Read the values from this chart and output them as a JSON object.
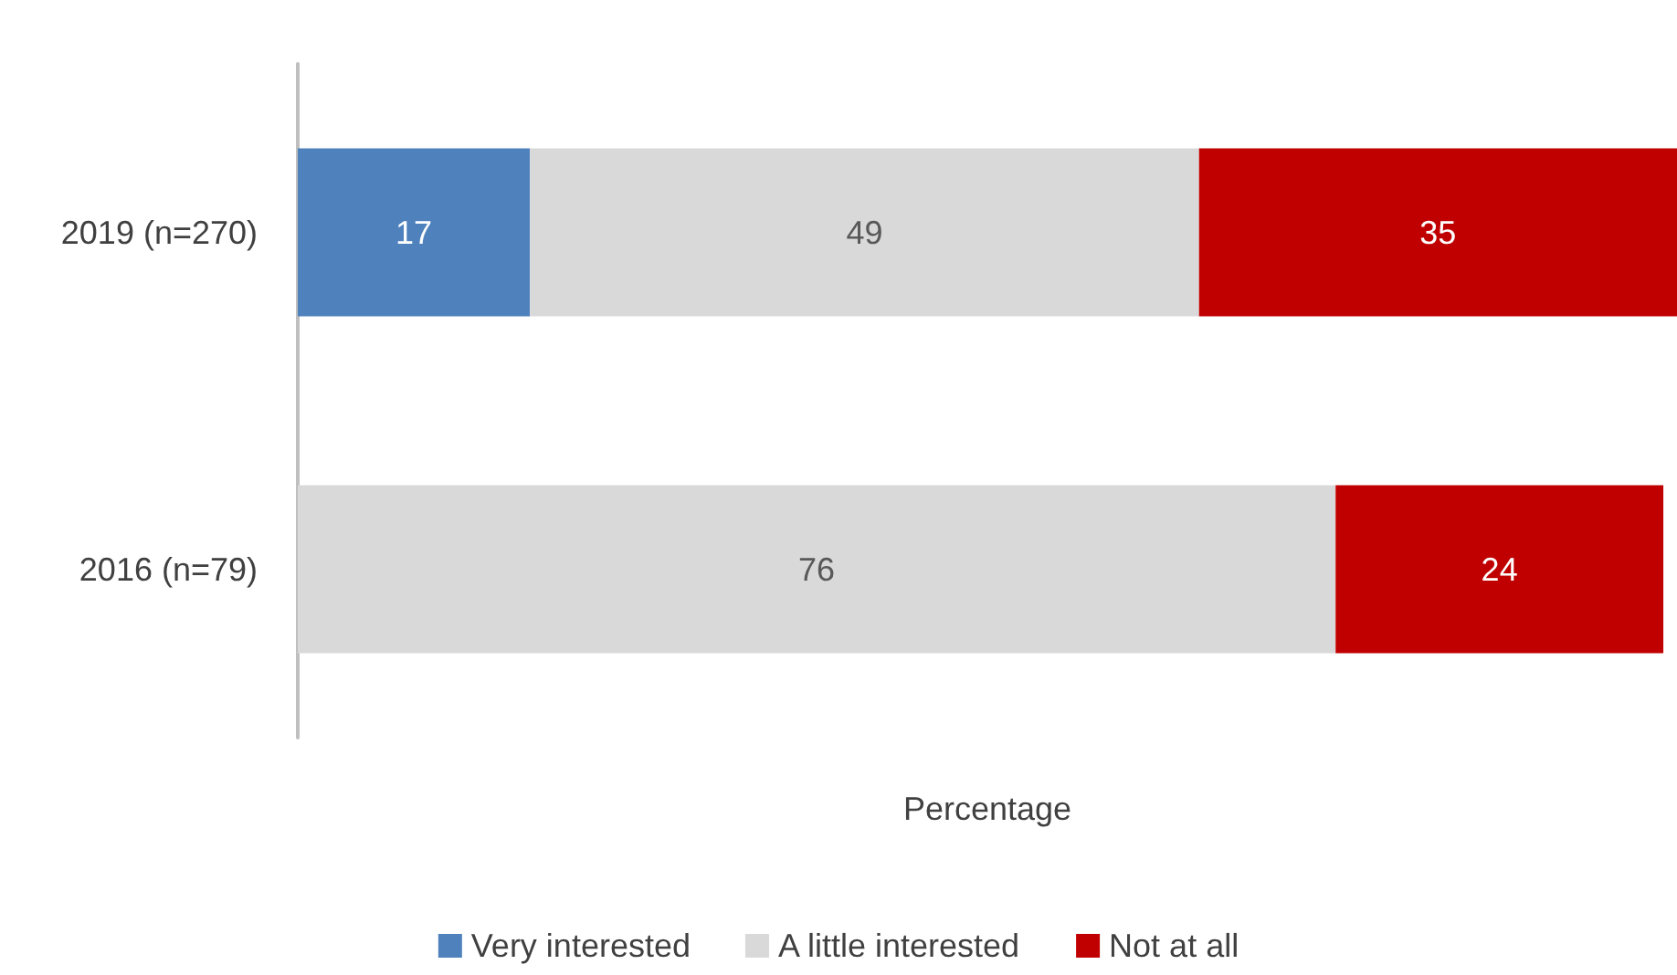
{
  "chart_data": {
    "type": "bar",
    "orientation": "horizontal",
    "stacked": true,
    "xlabel": "Percentage",
    "categories": [
      "2019 (n=270)",
      "2016 (n=79)"
    ],
    "series": [
      {
        "name": "Very interested",
        "color": "#4f81bd",
        "values": [
          17,
          null
        ]
      },
      {
        "name": "A little interested",
        "color": "#d9d9d9",
        "values": [
          49,
          76
        ]
      },
      {
        "name": "Not at all",
        "color": "#c00000",
        "values": [
          35,
          24
        ]
      }
    ],
    "data_labels": true,
    "legend": "bottom",
    "grid": false
  }
}
